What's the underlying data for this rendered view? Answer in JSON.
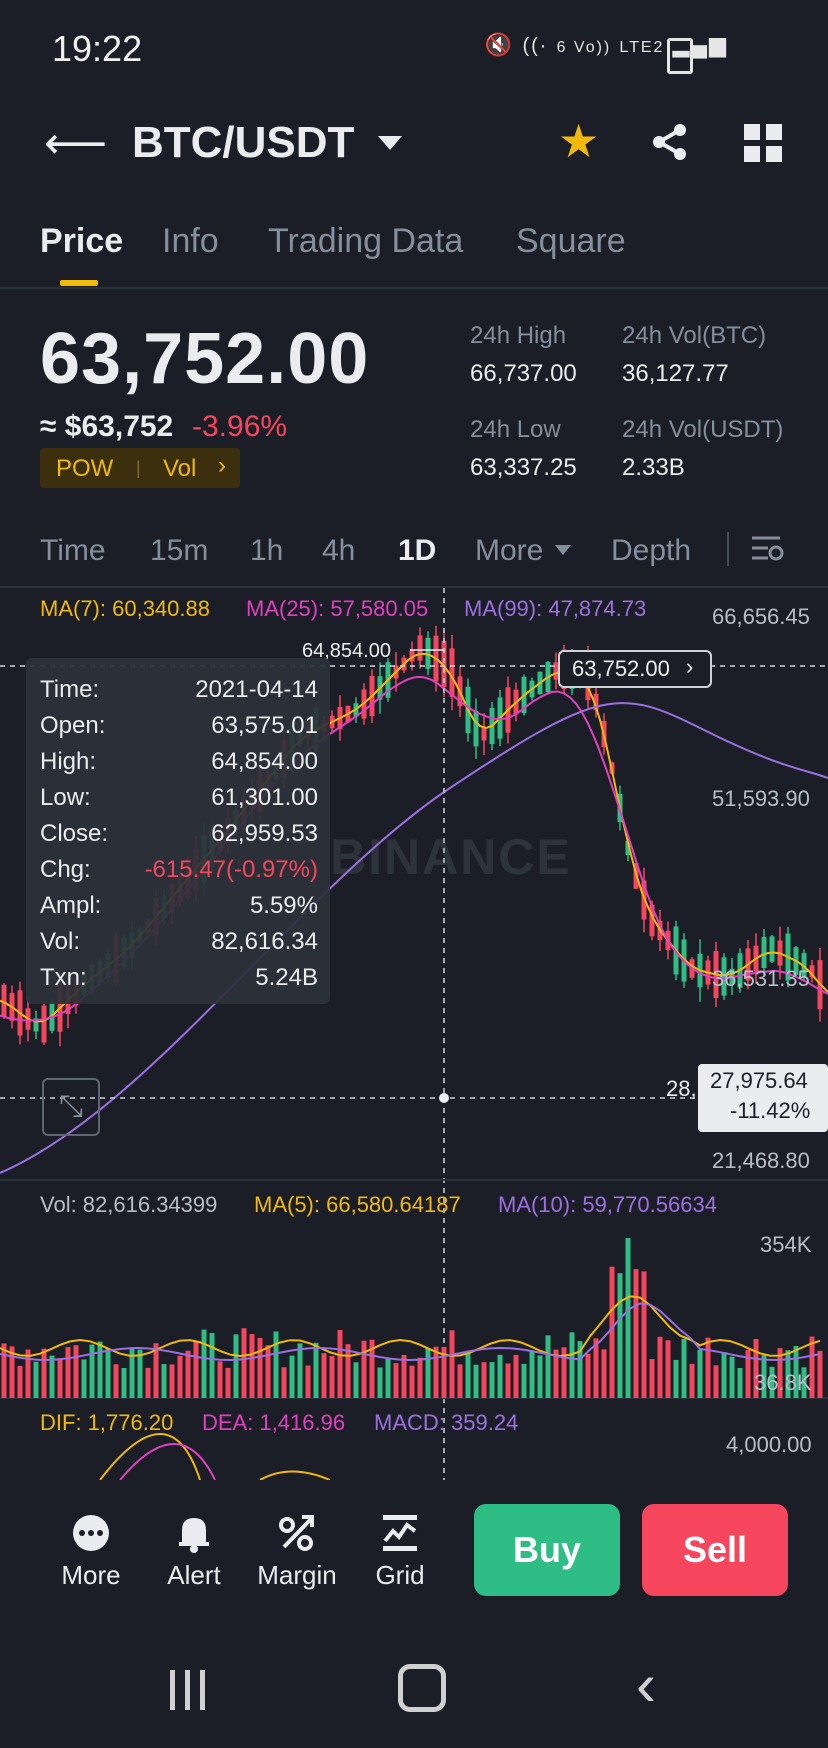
{
  "status_bar": {
    "time": "19:22",
    "network_label": "LTE2",
    "signal_text": "6 Vo))",
    "icons": [
      "mute-icon",
      "wifi-icon",
      "signal-icon",
      "battery-icon"
    ]
  },
  "header": {
    "pair": "BTC/USDT",
    "icons": [
      "back-arrow-icon",
      "caret-down-icon",
      "star-icon",
      "share-icon",
      "grid-icon"
    ]
  },
  "tabs": [
    {
      "label": "Price",
      "active": true
    },
    {
      "label": "Info",
      "active": false
    },
    {
      "label": "Trading Data",
      "active": false
    },
    {
      "label": "Square",
      "active": false
    }
  ],
  "ticker": {
    "last_price": "63,752.00",
    "usd_price": "≈ $63,752",
    "change_pct": "-3.96%",
    "tag_pow": "POW",
    "tag_vol": "Vol",
    "high_label": "24h High",
    "high_value": "66,737.00",
    "low_label": "24h Low",
    "low_value": "63,337.25",
    "vol_btc_label": "24h Vol(BTC)",
    "vol_btc_value": "36,127.77",
    "vol_usdt_label": "24h Vol(USDT)",
    "vol_usdt_value": "2.33B"
  },
  "timeframes": {
    "items": [
      "Time",
      "15m",
      "1h",
      "4h",
      "1D",
      "More",
      "Depth"
    ],
    "active": "1D"
  },
  "chart": {
    "ma7": "MA(7): 60,340.88",
    "ma25": "MA(25): 57,580.05",
    "ma99": "MA(99): 47,874.73",
    "axis": [
      "66,656.45",
      "51,593.90",
      "36,531.35",
      "21,468.80"
    ],
    "high_marker": "64,854.00",
    "current_price_pill": "63,752.00",
    "crosshair_price": "27,975.64",
    "crosshair_pct": "-11.42%",
    "crosshair_partial": "28,",
    "watermark": "BINANCE",
    "colors": {
      "up": "#2ebd85",
      "down": "#f6465d",
      "ma7": "#f0b90b",
      "ma25": "#e040c0",
      "ma99": "#9c6fe0"
    }
  },
  "tooltip": {
    "rows": [
      {
        "label": "Time:",
        "value": "2021-04-14"
      },
      {
        "label": "Open:",
        "value": "63,575.01"
      },
      {
        "label": "High:",
        "value": "64,854.00"
      },
      {
        "label": "Low:",
        "value": "61,301.00"
      },
      {
        "label": "Close:",
        "value": "62,959.53"
      },
      {
        "label": "Chg:",
        "value": "-615.47(-0.97%)"
      },
      {
        "label": "Ampl:",
        "value": "5.59%"
      },
      {
        "label": "Vol:",
        "value": "82,616.34"
      },
      {
        "label": "Txn:",
        "value": "5.24B"
      }
    ]
  },
  "volume": {
    "vol": "Vol: 82,616.34399",
    "ma5": "MA(5): 66,580.64187",
    "ma10": "MA(10): 59,770.56634",
    "axis_top": "354K",
    "axis_bottom": "36.8K"
  },
  "macd": {
    "dif": "DIF: 1,776.20",
    "dea": "DEA: 1,416.96",
    "macd": "MACD: 359.24",
    "axis": "4,000.00"
  },
  "bottom_bar": {
    "more": "More",
    "alert": "Alert",
    "margin": "Margin",
    "grid": "Grid",
    "buy": "Buy",
    "sell": "Sell"
  }
}
